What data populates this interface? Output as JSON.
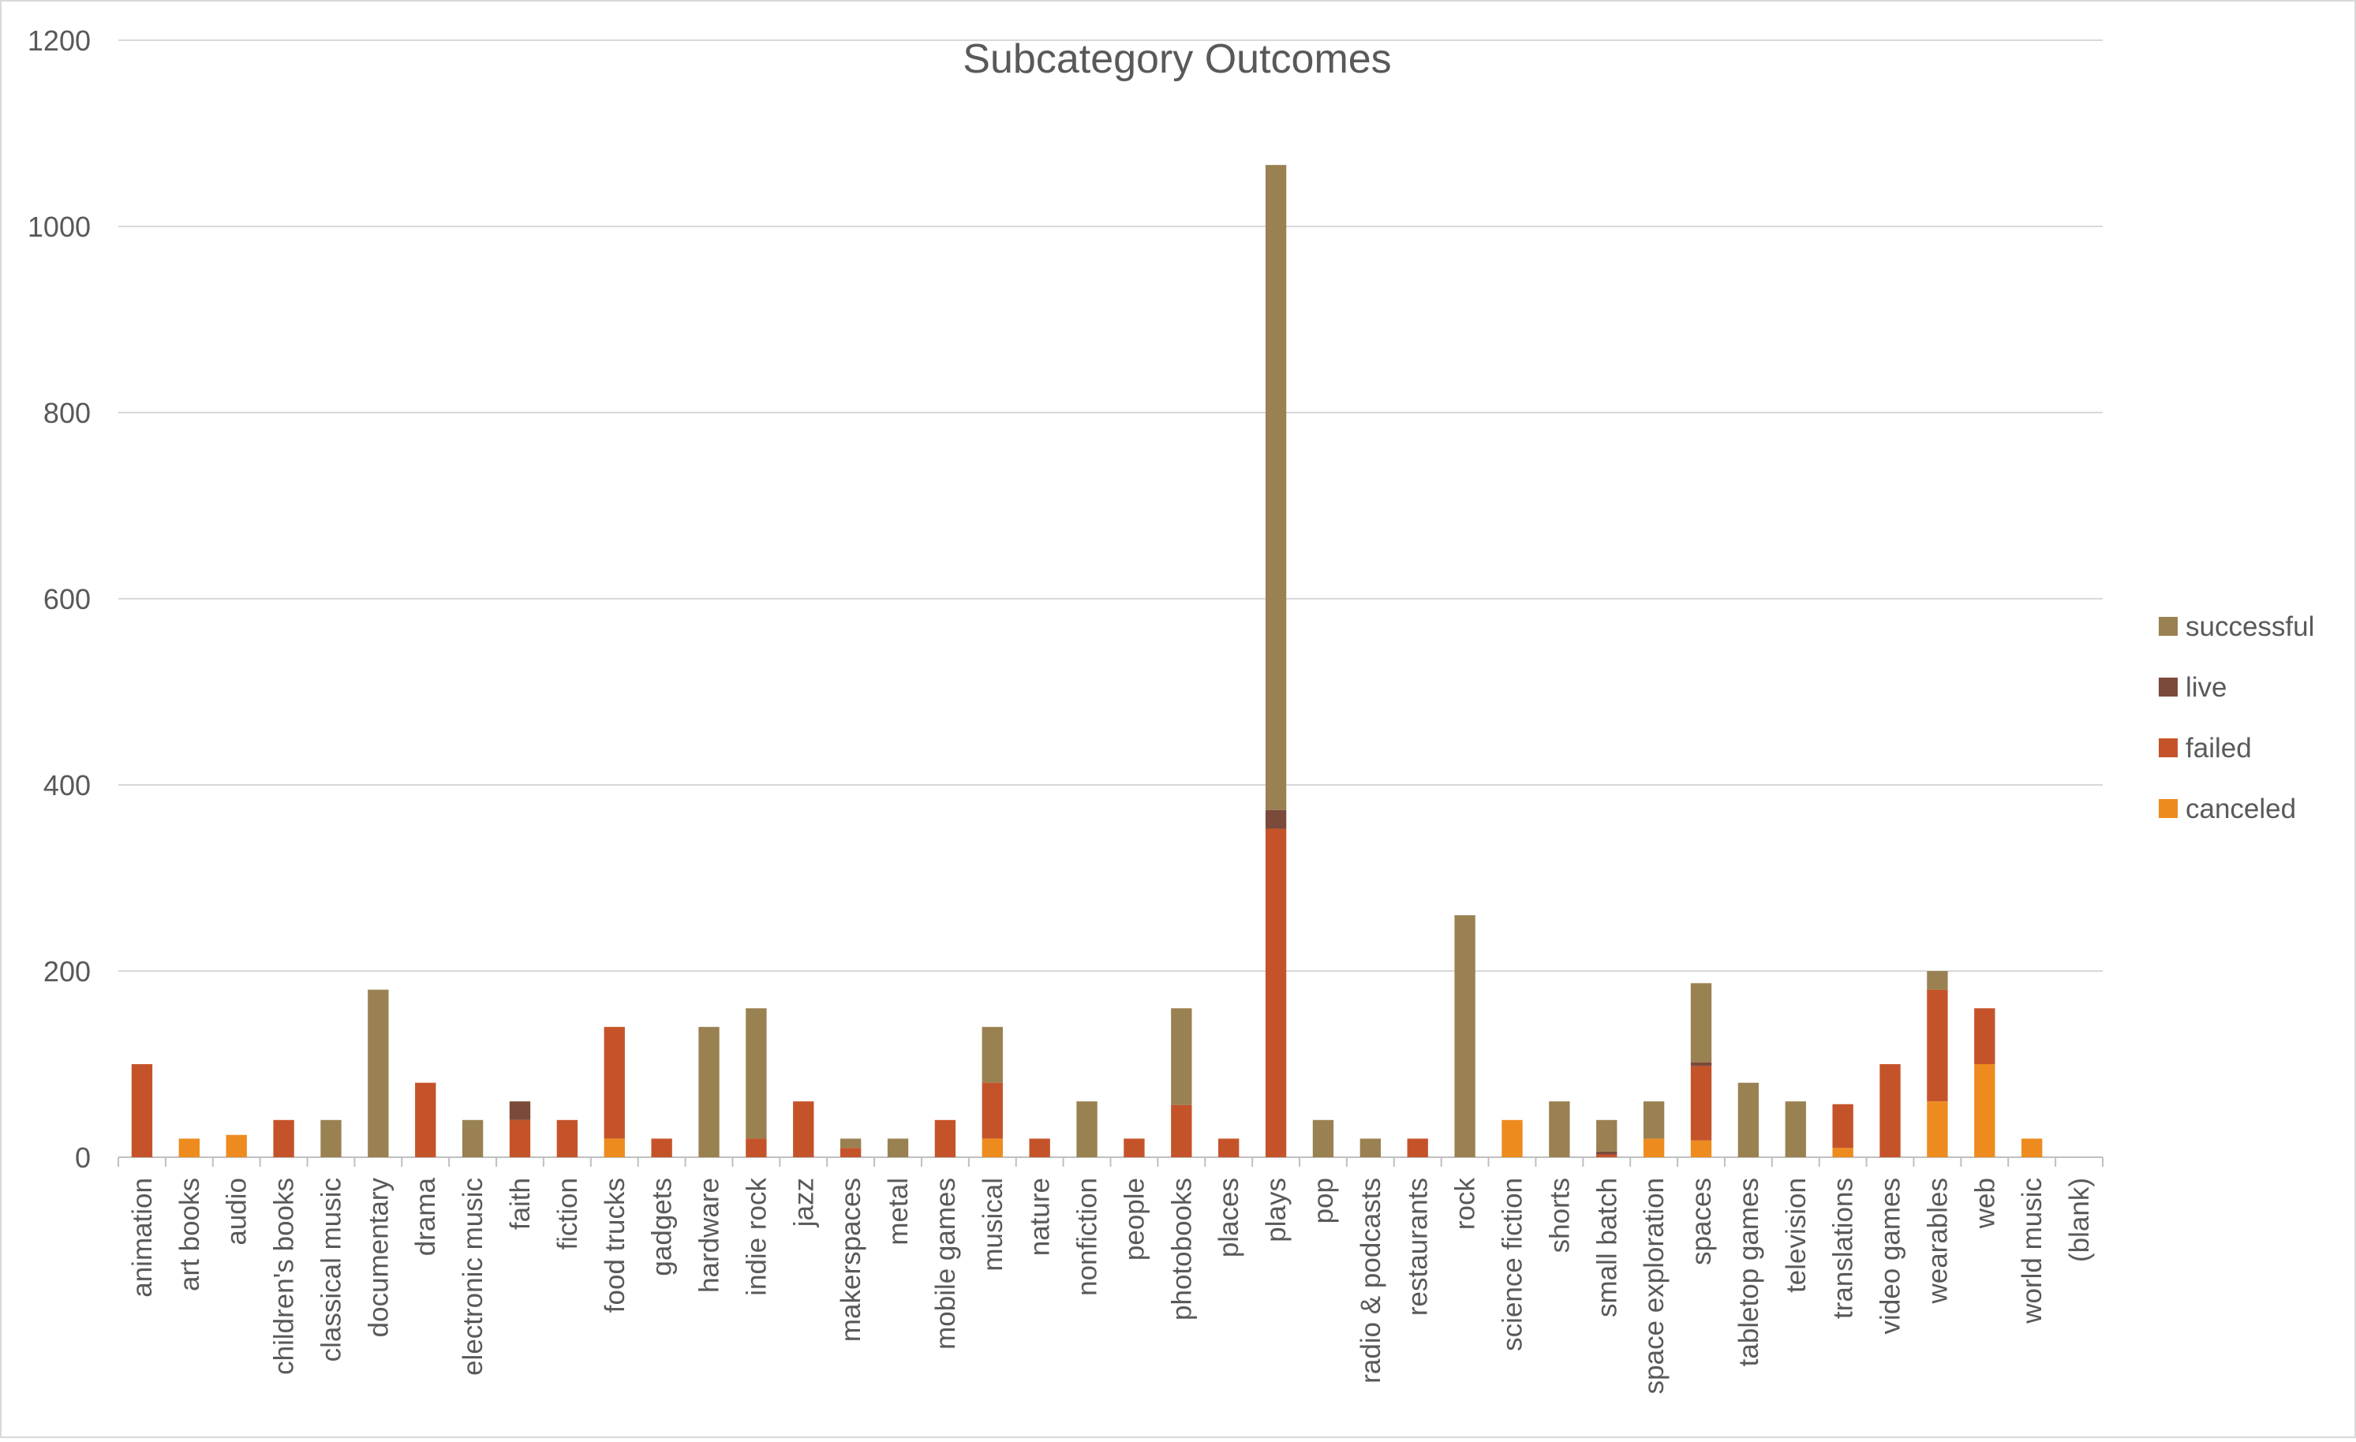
{
  "chart_data": {
    "type": "bar",
    "stacked": true,
    "title": "Subcategory Outcomes",
    "xlabel": "",
    "ylabel": "",
    "ylim": [
      0,
      1200
    ],
    "yticks": [
      0,
      200,
      400,
      600,
      800,
      1000,
      1200
    ],
    "grid": true,
    "legend_position": "right",
    "categories": [
      "animation",
      "art books",
      "audio",
      "children's books",
      "classical music",
      "documentary",
      "drama",
      "electronic music",
      "faith",
      "fiction",
      "food trucks",
      "gadgets",
      "hardware",
      "indie rock",
      "jazz",
      "makerspaces",
      "metal",
      "mobile games",
      "musical",
      "nature",
      "nonfiction",
      "people",
      "photobooks",
      "places",
      "plays",
      "pop",
      "radio & podcasts",
      "restaurants",
      "rock",
      "science fiction",
      "shorts",
      "small batch",
      "space exploration",
      "spaces",
      "tabletop games",
      "television",
      "translations",
      "video games",
      "wearables",
      "web",
      "world music",
      "(blank)"
    ],
    "series": [
      {
        "name": "canceled",
        "color": "#ED8B1F",
        "values": [
          0,
          20,
          24,
          0,
          0,
          0,
          0,
          0,
          0,
          0,
          20,
          0,
          0,
          0,
          0,
          0,
          0,
          0,
          20,
          0,
          0,
          0,
          0,
          0,
          0,
          0,
          0,
          0,
          0,
          40,
          0,
          0,
          20,
          18,
          0,
          0,
          10,
          0,
          60,
          100,
          20,
          0
        ]
      },
      {
        "name": "failed",
        "color": "#C5532A",
        "values": [
          100,
          0,
          0,
          40,
          0,
          0,
          80,
          0,
          40,
          40,
          120,
          20,
          0,
          20,
          60,
          10,
          0,
          40,
          60,
          20,
          0,
          20,
          56,
          20,
          353,
          0,
          0,
          20,
          0,
          0,
          0,
          3,
          0,
          80,
          0,
          0,
          47,
          100,
          120,
          60,
          0,
          0
        ]
      },
      {
        "name": "live",
        "color": "#7B4A3A",
        "values": [
          0,
          0,
          0,
          0,
          0,
          0,
          0,
          0,
          20,
          0,
          0,
          0,
          0,
          0,
          0,
          0,
          0,
          0,
          0,
          0,
          0,
          0,
          0,
          0,
          20,
          0,
          0,
          0,
          0,
          0,
          0,
          3,
          0,
          4,
          0,
          0,
          0,
          0,
          0,
          0,
          0,
          0
        ]
      },
      {
        "name": "successful",
        "color": "#9A8152",
        "values": [
          0,
          0,
          0,
          0,
          40,
          180,
          0,
          40,
          0,
          0,
          0,
          0,
          140,
          140,
          0,
          10,
          20,
          0,
          60,
          0,
          60,
          0,
          104,
          0,
          693,
          40,
          20,
          0,
          260,
          0,
          60,
          34,
          40,
          85,
          80,
          60,
          0,
          0,
          20,
          0,
          0,
          0
        ]
      }
    ]
  }
}
